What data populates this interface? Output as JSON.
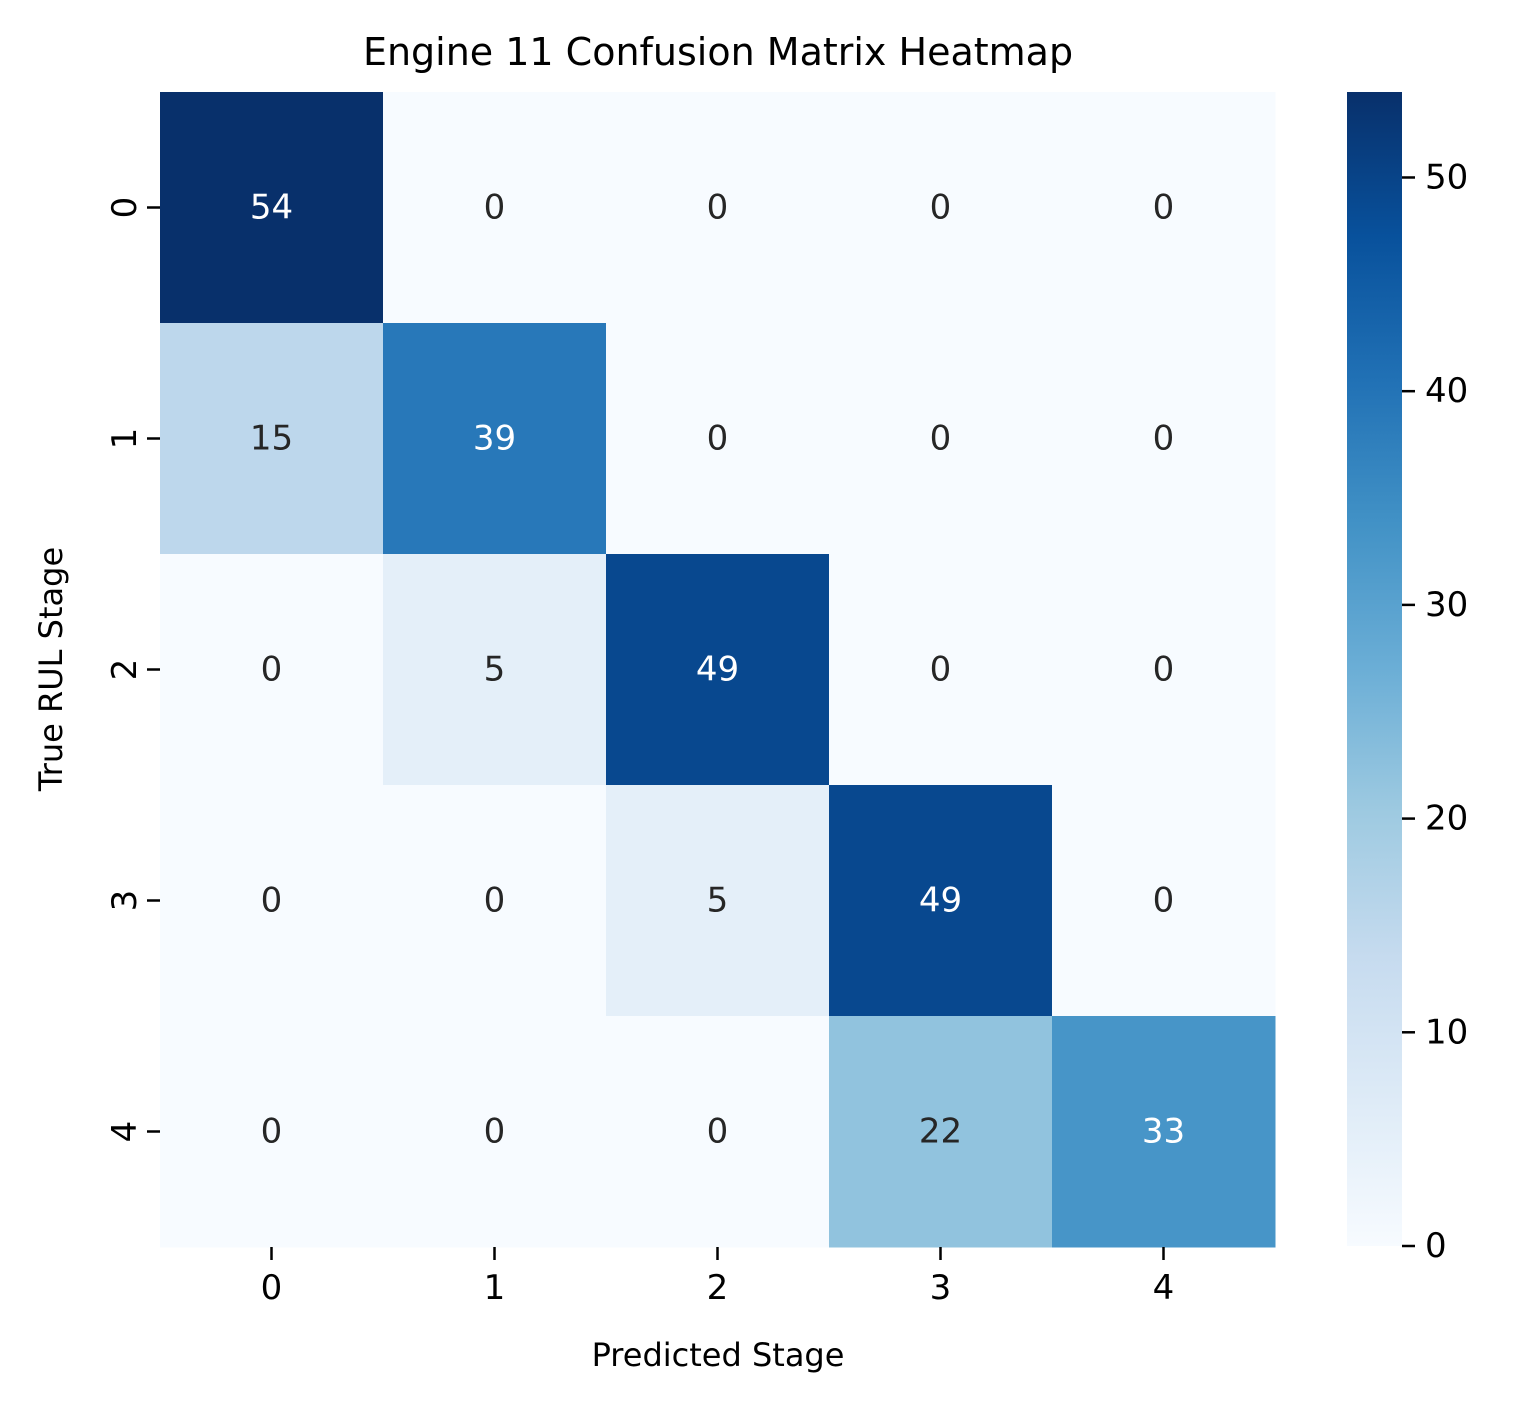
{
  "chart_data": {
    "type": "heatmap",
    "title": "Engine 11 Confusion Matrix Heatmap",
    "xlabel": "Predicted Stage",
    "ylabel": "True RUL Stage",
    "x_categories": [
      "0",
      "1",
      "2",
      "3",
      "4"
    ],
    "y_categories": [
      "0",
      "1",
      "2",
      "3",
      "4"
    ],
    "matrix": [
      [
        54,
        0,
        0,
        0,
        0
      ],
      [
        15,
        39,
        0,
        0,
        0
      ],
      [
        0,
        5,
        49,
        0,
        0
      ],
      [
        0,
        0,
        5,
        49,
        0
      ],
      [
        0,
        0,
        0,
        22,
        33
      ]
    ],
    "colormap": "Blues",
    "colorbar": {
      "min": 0,
      "max": 54,
      "ticks": [
        0,
        10,
        20,
        30,
        40,
        50
      ]
    },
    "annotated": true,
    "grid": false
  }
}
